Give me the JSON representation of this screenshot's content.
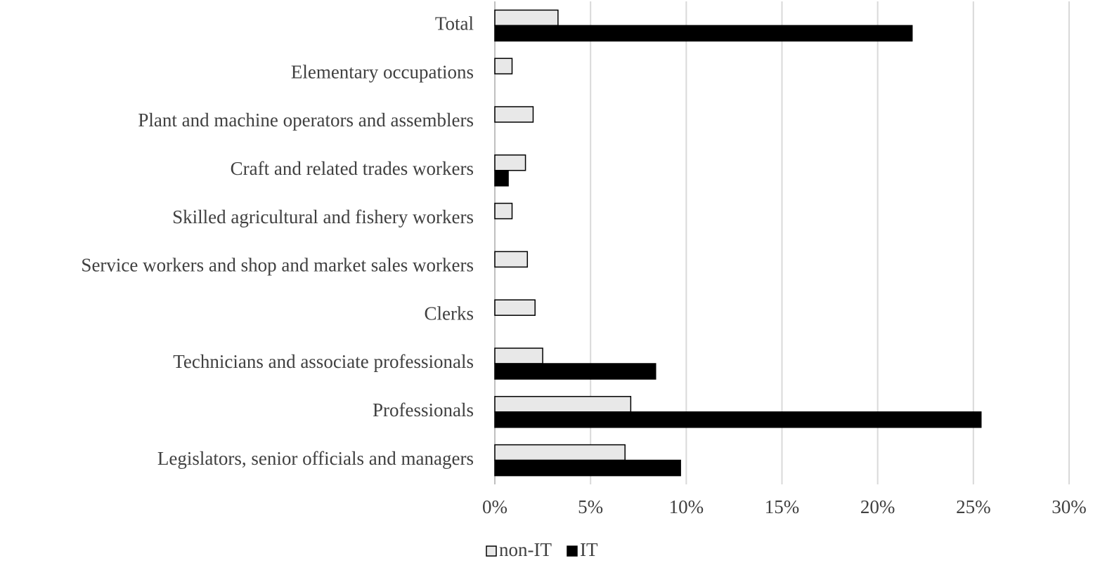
{
  "chart_data": {
    "type": "hbar",
    "categories": [
      "Total",
      "Elementary occupations",
      "Plant and machine operators and assemblers",
      "Craft and related trades workers",
      "Skilled agricultural and fishery workers",
      "Service workers and shop and market sales workers",
      "Clerks",
      "Technicians and associate professionals",
      "Professionals",
      "Legislators, senior officials and managers"
    ],
    "series": [
      {
        "name": "non-IT",
        "color": "#e8e8e8",
        "values": [
          3.3,
          0.9,
          2.0,
          1.6,
          0.9,
          1.7,
          2.1,
          2.5,
          7.1,
          6.8
        ]
      },
      {
        "name": "IT",
        "color": "#000000",
        "values": [
          21.8,
          null,
          null,
          0.7,
          null,
          null,
          null,
          8.4,
          25.4,
          9.7
        ]
      }
    ],
    "xlim": [
      0,
      30
    ],
    "xticks": [
      {
        "value": 0,
        "label": "0%"
      },
      {
        "value": 5,
        "label": "5%"
      },
      {
        "value": 10,
        "label": "10%"
      },
      {
        "value": 15,
        "label": "15%"
      },
      {
        "value": 20,
        "label": "20%"
      },
      {
        "value": 25,
        "label": "25%"
      },
      {
        "value": 30,
        "label": "30%"
      }
    ],
    "grid": true,
    "legend": "bottom"
  }
}
